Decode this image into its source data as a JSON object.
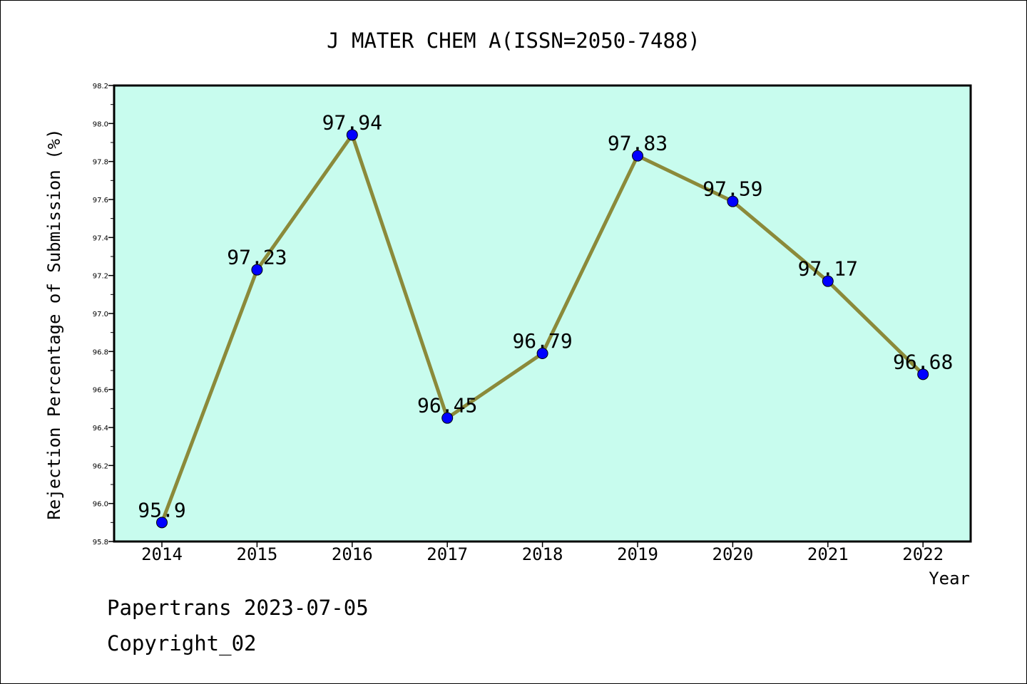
{
  "chart_data": {
    "type": "line",
    "title": "J MATER CHEM A(ISSN=2050-7488)",
    "xlabel": "Year",
    "ylabel": "Rejection Percentage of Submission (%)",
    "categories": [
      "2014",
      "2015",
      "2016",
      "2017",
      "2018",
      "2019",
      "2020",
      "2021",
      "2022"
    ],
    "values": [
      95.9,
      97.23,
      97.94,
      96.45,
      96.79,
      97.83,
      97.59,
      97.17,
      96.68
    ],
    "data_labels": [
      "95.9",
      "97.23",
      "97.94",
      "96.45",
      "96.79",
      "97.83",
      "97.59",
      "97.17",
      "96.68"
    ],
    "ylim": [
      95.8,
      98.2
    ],
    "yticks": [
      "95.8",
      "96.0",
      "96.2",
      "96.4",
      "96.6",
      "96.8",
      "97.0",
      "97.2",
      "97.4",
      "97.6",
      "97.8",
      "98.0",
      "98.2"
    ],
    "grid": false,
    "colors": {
      "plot_background": "#c8fcee",
      "line": "#8b8a3a",
      "marker": "#0000ff"
    }
  },
  "footer": {
    "source": "Papertrans 2023-07-05",
    "copyright": "Copyright_02"
  }
}
